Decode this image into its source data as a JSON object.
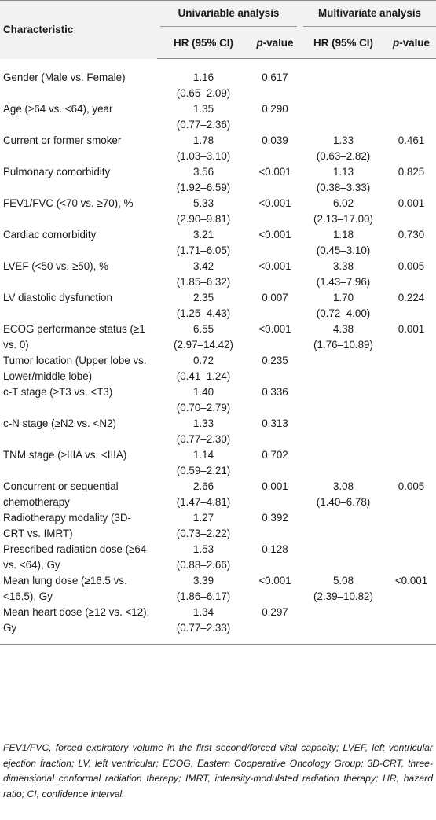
{
  "header": {
    "characteristic": "Characteristic",
    "univariable": "Univariable analysis",
    "multivariate": "Multivariate analysis",
    "hr_ci": "HR (95% CI)",
    "p_value_p": "p",
    "p_value_rest": "-value"
  },
  "rows": [
    {
      "label": "Gender (Male vs. Female)",
      "u_hr": "1.16",
      "u_ci": "(0.65–2.09)",
      "u_p": "0.617",
      "m_hr": "",
      "m_ci": "",
      "m_p": ""
    },
    {
      "label": "Age (≥64 vs. <64), year",
      "u_hr": "1.35",
      "u_ci": "(0.77–2.36)",
      "u_p": "0.290",
      "m_hr": "",
      "m_ci": "",
      "m_p": ""
    },
    {
      "label": "Current or former smoker",
      "u_hr": "1.78",
      "u_ci": "(1.03–3.10)",
      "u_p": "0.039",
      "m_hr": "1.33",
      "m_ci": "(0.63–2.82)",
      "m_p": "0.461"
    },
    {
      "label": "Pulmonary comorbidity",
      "u_hr": "3.56",
      "u_ci": "(1.92–6.59)",
      "u_p": "<0.001",
      "m_hr": "1.13",
      "m_ci": "(0.38–3.33)",
      "m_p": "0.825"
    },
    {
      "label": "FEV1/FVC (<70 vs. ≥70), %",
      "u_hr": "5.33",
      "u_ci": "(2.90–9.81)",
      "u_p": "<0.001",
      "m_hr": "6.02",
      "m_ci": "(2.13–17.00)",
      "m_p": "0.001"
    },
    {
      "label": "Cardiac comorbidity",
      "u_hr": "3.21",
      "u_ci": "(1.71–6.05)",
      "u_p": "<0.001",
      "m_hr": "1.18",
      "m_ci": "(0.45–3.10)",
      "m_p": "0.730"
    },
    {
      "label": "LVEF (<50 vs. ≥50), %",
      "u_hr": "3.42",
      "u_ci": "(1.85–6.32)",
      "u_p": "<0.001",
      "m_hr": "3.38",
      "m_ci": "(1.43–7.96)",
      "m_p": "0.005"
    },
    {
      "label": "LV diastolic dysfunction",
      "u_hr": "2.35",
      "u_ci": "(1.25–4.43)",
      "u_p": "0.007",
      "m_hr": "1.70",
      "m_ci": "(0.72–4.00)",
      "m_p": "0.224"
    },
    {
      "label": "ECOG performance status (≥1 vs. 0)",
      "u_hr": "6.55",
      "u_ci": "(2.97–14.42)",
      "u_p": "<0.001",
      "m_hr": "4.38",
      "m_ci": "(1.76–10.89)",
      "m_p": "0.001"
    },
    {
      "label": "Tumor location (Upper lobe vs. Lower/middle lobe)",
      "u_hr": "0.72",
      "u_ci": "(0.41–1.24)",
      "u_p": "0.235",
      "m_hr": "",
      "m_ci": "",
      "m_p": ""
    },
    {
      "label": "c-T stage (≥T3 vs. <T3)",
      "u_hr": "1.40",
      "u_ci": "(0.70–2.79)",
      "u_p": "0.336",
      "m_hr": "",
      "m_ci": "",
      "m_p": ""
    },
    {
      "label": "c-N stage (≥N2 vs. <N2)",
      "u_hr": "1.33",
      "u_ci": "(0.77–2.30)",
      "u_p": "0.313",
      "m_hr": "",
      "m_ci": "",
      "m_p": ""
    },
    {
      "label": "TNM stage (≥IIIA vs. <IIIA)",
      "u_hr": "1.14",
      "u_ci": "(0.59–2.21)",
      "u_p": "0.702",
      "m_hr": "",
      "m_ci": "",
      "m_p": ""
    },
    {
      "label": "Concurrent or sequential chemotherapy",
      "u_hr": "2.66",
      "u_ci": "(1.47–4.81)",
      "u_p": "0.001",
      "m_hr": "3.08",
      "m_ci": "(1.40–6.78)",
      "m_p": "0.005"
    },
    {
      "label": "Radiotherapy modality (3D-CRT vs. IMRT)",
      "u_hr": "1.27",
      "u_ci": "(0.73–2.22)",
      "u_p": "0.392",
      "m_hr": "",
      "m_ci": "",
      "m_p": ""
    },
    {
      "label": "Prescribed radiation dose (≥64 vs. <64), Gy",
      "u_hr": "1.53",
      "u_ci": "(0.88–2.66)",
      "u_p": "0.128",
      "m_hr": "",
      "m_ci": "",
      "m_p": ""
    },
    {
      "label": "Mean lung dose (≥16.5 vs. <16.5), Gy",
      "u_hr": "3.39",
      "u_ci": "(1.86–6.17)",
      "u_p": "<0.001",
      "m_hr": "5.08",
      "m_ci": "(2.39–10.82)",
      "m_p": "<0.001"
    },
    {
      "label": "Mean heart dose (≥12 vs. <12), Gy",
      "u_hr": "1.34",
      "u_ci": "(0.77–2.33)",
      "u_p": "0.297",
      "m_hr": "",
      "m_ci": "",
      "m_p": ""
    }
  ],
  "footnote": "FEV1/FVC, forced expiratory volume in the first second/forced vital capacity; LVEF, left ventricular ejection fraction; LV, left ventricular; ECOG, Eastern Cooperative Oncology Group; 3D-CRT, three-dimensional conformal radiation therapy; IMRT, intensity-modulated radiation therapy; HR, hazard ratio; CI, confidence interval."
}
